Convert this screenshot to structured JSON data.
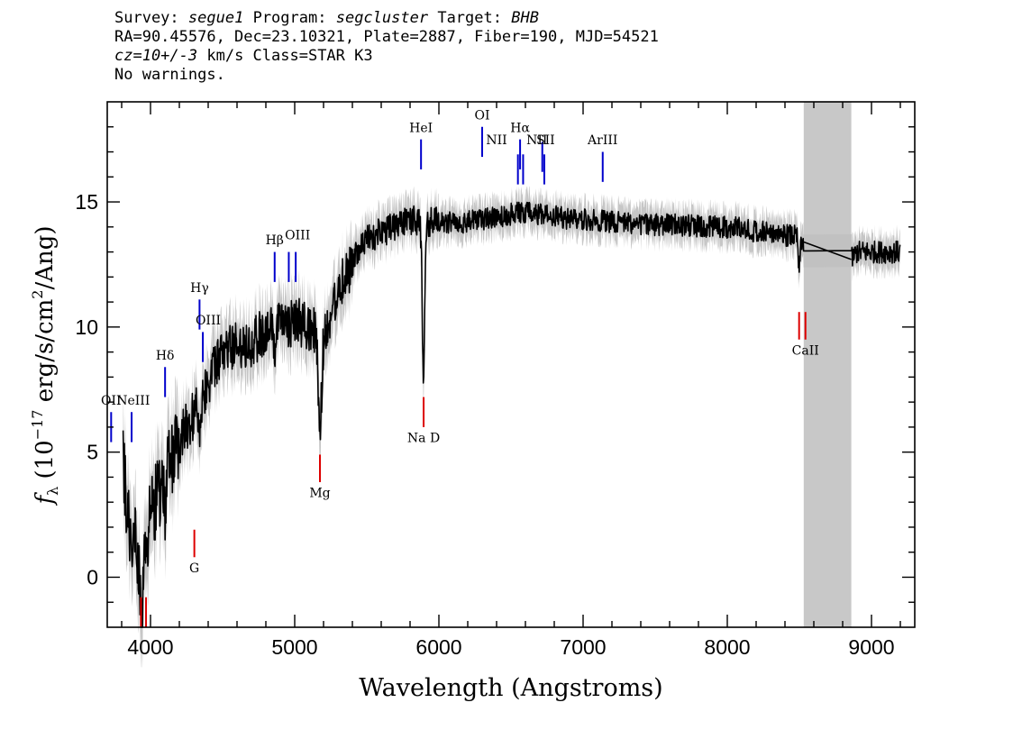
{
  "header": {
    "survey_label": "Survey:",
    "survey_value": "segue1",
    "program_label": "Program:",
    "program_value": "segcluster",
    "target_label": "Target:",
    "target_value": "BHB",
    "line2": "RA=90.45576, Dec=23.10321, Plate=2887, Fiber=190, MJD=54521",
    "cz_value": "cz=10+/-3",
    "cz_rest": "km/s Class=STAR K3",
    "warnings": "No warnings."
  },
  "chart_data": {
    "type": "line",
    "xlabel": "Wavelength (Angstroms)",
    "ylabel_parts": [
      "f",
      "λ",
      " (10",
      "−17",
      " erg/s/cm",
      "2",
      "/Ang)"
    ],
    "xlim": [
      3700,
      9300
    ],
    "ylim": [
      -2,
      19
    ],
    "xticks": [
      4000,
      5000,
      6000,
      7000,
      8000,
      9000
    ],
    "yticks": [
      0,
      5,
      10,
      15
    ],
    "masked_region": [
      8530,
      8860
    ],
    "colors": {
      "spectrum": "#000000",
      "error": "#c0c0c0",
      "emission": "#0000cc",
      "absorption": "#dd0000",
      "mask": "#c8c8c8"
    },
    "continuum": [
      [
        3800,
        5.0
      ],
      [
        3850,
        2.0
      ],
      [
        3900,
        1.5
      ],
      [
        3950,
        0.5
      ],
      [
        4000,
        2.5
      ],
      [
        4100,
        4.0
      ],
      [
        4200,
        5.5
      ],
      [
        4300,
        6.5
      ],
      [
        4400,
        7.8
      ],
      [
        4500,
        9.0
      ],
      [
        4600,
        9.3
      ],
      [
        4700,
        9.4
      ],
      [
        4800,
        9.8
      ],
      [
        4900,
        10.0
      ],
      [
        5000,
        10.2
      ],
      [
        5100,
        10.0
      ],
      [
        5200,
        9.5
      ],
      [
        5300,
        11.5
      ],
      [
        5400,
        12.6
      ],
      [
        5500,
        13.5
      ],
      [
        5600,
        13.8
      ],
      [
        5700,
        14.0
      ],
      [
        5800,
        14.3
      ],
      [
        5900,
        14.2
      ],
      [
        6000,
        14.2
      ],
      [
        6200,
        14.2
      ],
      [
        6400,
        14.4
      ],
      [
        6600,
        14.6
      ],
      [
        6800,
        14.4
      ],
      [
        7000,
        14.3
      ],
      [
        7500,
        14.1
      ],
      [
        8000,
        14.0
      ],
      [
        8500,
        13.6
      ],
      [
        8530,
        13.4
      ],
      [
        8860,
        12.7
      ],
      [
        8900,
        13.0
      ],
      [
        9200,
        13.0
      ]
    ],
    "absorption_dips": [
      {
        "x": 3934,
        "depth": 2.5,
        "width": 15
      },
      {
        "x": 4101,
        "depth": 1.5,
        "width": 10
      },
      {
        "x": 4340,
        "depth": 1.2,
        "width": 10
      },
      {
        "x": 4861,
        "depth": 1.0,
        "width": 10
      },
      {
        "x": 5175,
        "depth": 4.0,
        "width": 15
      },
      {
        "x": 5893,
        "depth": 6.0,
        "width": 12
      },
      {
        "x": 8498,
        "depth": 1.5,
        "width": 8
      },
      {
        "x": 8542,
        "depth": 2.0,
        "width": 8
      }
    ],
    "emission_lines": [
      {
        "label": "OII",
        "wave": 3727,
        "y1": 5.4,
        "y2": 6.6,
        "lx": 3727,
        "ly": 6.9
      },
      {
        "label": "NeIII",
        "wave": 3869,
        "y1": 5.4,
        "y2": 6.6,
        "lx": 3880,
        "ly": 6.9
      },
      {
        "label": "Hδ",
        "wave": 4101,
        "y1": 7.2,
        "y2": 8.4,
        "lx": 4101,
        "ly": 8.7
      },
      {
        "label": "Hγ",
        "wave": 4340,
        "y1": 9.9,
        "y2": 11.1,
        "lx": 4340,
        "ly": 11.4
      },
      {
        "label": "OIII",
        "wave": 4363,
        "y1": 8.6,
        "y2": 9.8,
        "lx": 4400,
        "ly": 10.1
      },
      {
        "label": "Hβ",
        "wave": 4861,
        "y1": 11.8,
        "y2": 13.0,
        "lx": 4861,
        "ly": 13.3
      },
      {
        "label": "OIII",
        "wave": 4959,
        "y1": 11.8,
        "y2": 13.0,
        "lx": 5020,
        "ly": 13.5
      },
      {
        "label": "OIII",
        "wave": 5007,
        "y1": 11.8,
        "y2": 13.0,
        "lx": null,
        "ly": null
      },
      {
        "label": "HeI",
        "wave": 5876,
        "y1": 16.3,
        "y2": 17.5,
        "lx": 5876,
        "ly": 17.8
      },
      {
        "label": "OI",
        "wave": 6300,
        "y1": 16.8,
        "y2": 18.0,
        "lx": 6300,
        "ly": 18.3
      },
      {
        "label": "NII",
        "wave": 6548,
        "y1": 15.7,
        "y2": 16.9,
        "lx": 6400,
        "ly": 17.3
      },
      {
        "label": "Hα",
        "wave": 6563,
        "y1": 16.3,
        "y2": 17.5,
        "lx": 6563,
        "ly": 17.8
      },
      {
        "label": "NII",
        "wave": 6584,
        "y1": 15.7,
        "y2": 16.9,
        "lx": 6680,
        "ly": 17.3
      },
      {
        "label": "SII",
        "wave": 6717,
        "y1": 16.2,
        "y2": 17.4,
        "lx": 6740,
        "ly": 17.3
      },
      {
        "label": "SII",
        "wave": 6731,
        "y1": 15.7,
        "y2": 16.9,
        "lx": null,
        "ly": null
      },
      {
        "label": "ArIII",
        "wave": 7136,
        "y1": 15.8,
        "y2": 17.0,
        "lx": 7136,
        "ly": 17.3
      }
    ],
    "absorption_lines": [
      {
        "label": "",
        "wave": 3934,
        "y1": -2.0,
        "y2": -0.8,
        "lx": null,
        "ly": null
      },
      {
        "label": "",
        "wave": 3969,
        "y1": -2.0,
        "y2": -0.8,
        "lx": null,
        "ly": null
      },
      {
        "label": "G",
        "wave": 4304,
        "y1": 0.8,
        "y2": 1.9,
        "lx": 4304,
        "ly": 0.2
      },
      {
        "label": "Mg",
        "wave": 5175,
        "y1": 3.8,
        "y2": 4.9,
        "lx": 5175,
        "ly": 3.2
      },
      {
        "label": "Na D",
        "wave": 5894,
        "y1": 6.0,
        "y2": 7.2,
        "lx": 5894,
        "ly": 5.4
      },
      {
        "label": "CaII",
        "wave": 8498,
        "y1": 9.5,
        "y2": 10.6,
        "lx": 8542,
        "ly": 8.9
      },
      {
        "label": "",
        "wave": 8542,
        "y1": 9.5,
        "y2": 10.6,
        "lx": null,
        "ly": null
      }
    ]
  }
}
